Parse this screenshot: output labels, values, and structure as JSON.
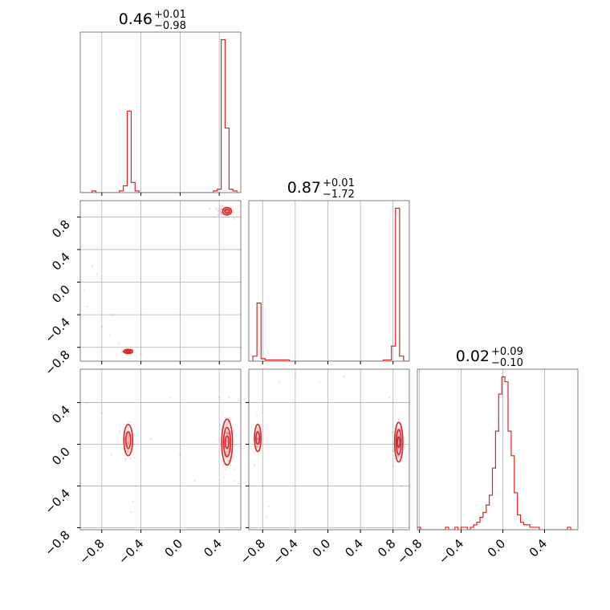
{
  "chart_data": {
    "type": "corner",
    "color": "#d62728",
    "grid": true,
    "n_params": 3,
    "panels": [
      {
        "type": "histogram",
        "row": 0,
        "col": 0,
        "title": {
          "median": "0.46",
          "plus": "+0.01",
          "minus": "−0.98"
        },
        "xlim": [
          -1.02,
          0.62
        ],
        "bin_edges": [
          -1.02,
          -0.98,
          -0.94,
          -0.9,
          -0.86,
          -0.82,
          -0.78,
          -0.74,
          -0.7,
          -0.66,
          -0.62,
          -0.58,
          -0.54,
          -0.5,
          -0.46,
          -0.42,
          -0.38,
          -0.34,
          -0.3,
          -0.26,
          -0.22,
          -0.18,
          -0.14,
          -0.1,
          -0.06,
          -0.02,
          0.02,
          0.06,
          0.1,
          0.14,
          0.18,
          0.22,
          0.26,
          0.3,
          0.34,
          0.38,
          0.42,
          0.46,
          0.5,
          0.54,
          0.58,
          0.62
        ],
        "counts": [
          0,
          0,
          0,
          1,
          0,
          0,
          0,
          0,
          0,
          0,
          1,
          4,
          48,
          6,
          1,
          0,
          0,
          0,
          0,
          0,
          0,
          0,
          0,
          0,
          0,
          0,
          0,
          0,
          0,
          0,
          0,
          0,
          0,
          0,
          1,
          2,
          90,
          38,
          2,
          1,
          0
        ]
      },
      {
        "type": "scatter",
        "row": 1,
        "col": 0,
        "xlim": [
          -1.02,
          0.62
        ],
        "ylim": [
          -0.97,
          1.0
        ],
        "clusters": [
          {
            "cx": -0.53,
            "cy": -0.85,
            "sx": 0.03,
            "sy": 0.015,
            "n": 55
          },
          {
            "cx": 0.46,
            "cy": 0.87,
            "sx": 0.04,
            "sy": 0.03,
            "n": 90
          }
        ],
        "outliers": [
          [
            -0.95,
            -0.3
          ],
          [
            -0.9,
            0.2
          ],
          [
            -0.8,
            -0.55
          ],
          [
            -0.72,
            -0.65
          ],
          [
            -0.63,
            -0.75
          ],
          [
            -0.85,
            0.1
          ],
          [
            -0.7,
            -0.4
          ],
          [
            0.3,
            0.9
          ],
          [
            -0.4,
            -0.88
          ],
          [
            0.35,
            0.8
          ],
          [
            0.55,
            0.78
          ],
          [
            -0.98,
            -0.1
          ]
        ],
        "contours": [
          {
            "cx": -0.53,
            "cy": -0.85,
            "rx": 0.045,
            "ry": 0.025
          },
          {
            "cx": -0.53,
            "cy": -0.85,
            "rx": 0.025,
            "ry": 0.012
          },
          {
            "cx": 0.48,
            "cy": 0.87,
            "rx": 0.045,
            "ry": 0.045
          },
          {
            "cx": 0.48,
            "cy": 0.87,
            "rx": 0.025,
            "ry": 0.022
          }
        ]
      },
      {
        "type": "histogram",
        "row": 1,
        "col": 1,
        "title": {
          "median": "0.87",
          "plus": "+0.01",
          "minus": "−1.72"
        },
        "xlim": [
          -0.97,
          1.0
        ],
        "bin_edges": [
          -0.97,
          -0.92,
          -0.87,
          -0.82,
          -0.77,
          -0.72,
          -0.67,
          -0.62,
          -0.57,
          -0.52,
          -0.47,
          -0.42,
          -0.37,
          -0.32,
          -0.27,
          -0.22,
          -0.17,
          -0.12,
          -0.07,
          -0.02,
          0.03,
          0.08,
          0.13,
          0.18,
          0.23,
          0.28,
          0.33,
          0.38,
          0.43,
          0.48,
          0.53,
          0.58,
          0.63,
          0.68,
          0.73,
          0.78,
          0.83,
          0.88,
          0.93,
          0.98,
          1.0
        ],
        "counts": [
          0,
          4,
          46,
          2,
          1,
          1,
          1,
          1,
          1,
          1,
          0,
          0,
          0,
          0,
          0,
          0,
          0,
          0,
          0,
          0,
          0,
          0,
          0,
          0,
          0,
          0,
          0,
          0,
          0,
          0,
          0,
          0,
          0,
          1,
          1,
          12,
          121,
          4,
          0,
          0
        ]
      },
      {
        "type": "scatter",
        "row": 2,
        "col": 0,
        "xlim": [
          -1.02,
          0.62
        ],
        "ylim": [
          -0.82,
          0.72
        ],
        "clusters": [
          {
            "cx": -0.53,
            "cy": 0.03,
            "sx": 0.025,
            "sy": 0.08,
            "n": 70
          },
          {
            "cx": 0.48,
            "cy": 0.02,
            "sx": 0.03,
            "sy": 0.1,
            "n": 110
          }
        ],
        "outliers": [
          [
            -0.95,
            0.4
          ],
          [
            -0.8,
            0.3
          ],
          [
            -0.7,
            -0.1
          ],
          [
            -0.48,
            -0.55
          ],
          [
            -0.5,
            -0.65
          ],
          [
            -0.45,
            -0.4
          ],
          [
            0.4,
            0.45
          ],
          [
            0.55,
            -0.35
          ],
          [
            -0.1,
            0.45
          ],
          [
            0.15,
            -0.35
          ],
          [
            -0.3,
            0.05
          ],
          [
            0.0,
            -0.1
          ],
          [
            0.5,
            0.45
          ]
        ],
        "contours": [
          {
            "cx": -0.53,
            "cy": 0.04,
            "rx": 0.045,
            "ry": 0.15
          },
          {
            "cx": -0.53,
            "cy": 0.04,
            "rx": 0.025,
            "ry": 0.08
          },
          {
            "cx": 0.48,
            "cy": 0.02,
            "rx": 0.055,
            "ry": 0.22
          },
          {
            "cx": 0.48,
            "cy": 0.02,
            "rx": 0.035,
            "ry": 0.14
          },
          {
            "cx": 0.48,
            "cy": 0.02,
            "rx": 0.018,
            "ry": 0.06
          }
        ]
      },
      {
        "type": "scatter",
        "row": 2,
        "col": 1,
        "xlim": [
          -0.97,
          1.0
        ],
        "ylim": [
          -0.82,
          0.72
        ],
        "clusters": [
          {
            "cx": -0.86,
            "cy": 0.05,
            "sx": 0.02,
            "sy": 0.07,
            "n": 60
          },
          {
            "cx": 0.86,
            "cy": 0.02,
            "sx": 0.025,
            "sy": 0.09,
            "n": 110
          }
        ],
        "outliers": [
          [
            -0.8,
            -0.4
          ],
          [
            -0.72,
            -0.6
          ],
          [
            -0.75,
            -0.7
          ],
          [
            -0.6,
            0.6
          ],
          [
            -0.4,
            0.65
          ],
          [
            0.75,
            0.45
          ],
          [
            0.8,
            0.4
          ],
          [
            0.9,
            -0.4
          ],
          [
            -0.9,
            -0.2
          ],
          [
            0.2,
            0.65
          ],
          [
            -0.1,
            0.6
          ]
        ],
        "contours": [
          {
            "cx": -0.86,
            "cy": 0.06,
            "rx": 0.04,
            "ry": 0.13
          },
          {
            "cx": -0.86,
            "cy": 0.06,
            "rx": 0.022,
            "ry": 0.06
          },
          {
            "cx": 0.87,
            "cy": 0.02,
            "rx": 0.05,
            "ry": 0.19
          },
          {
            "cx": 0.87,
            "cy": 0.02,
            "rx": 0.03,
            "ry": 0.12
          },
          {
            "cx": 0.87,
            "cy": 0.02,
            "rx": 0.015,
            "ry": 0.05
          }
        ]
      },
      {
        "type": "histogram",
        "row": 2,
        "col": 2,
        "title": {
          "median": "0.02",
          "plus": "+0.09",
          "minus": "−0.10"
        },
        "xlim": [
          -0.82,
          0.72
        ],
        "bin_edges": [
          -0.82,
          -0.79,
          -0.76,
          -0.73,
          -0.7,
          -0.67,
          -0.64,
          -0.61,
          -0.58,
          -0.55,
          -0.52,
          -0.49,
          -0.46,
          -0.43,
          -0.4,
          -0.37,
          -0.34,
          -0.31,
          -0.28,
          -0.25,
          -0.22,
          -0.19,
          -0.16,
          -0.13,
          -0.1,
          -0.07,
          -0.04,
          -0.01,
          0.02,
          0.05,
          0.08,
          0.11,
          0.14,
          0.17,
          0.2,
          0.23,
          0.26,
          0.29,
          0.32,
          0.35,
          0.38,
          0.41,
          0.44,
          0.47,
          0.5,
          0.53,
          0.56,
          0.59,
          0.62,
          0.65,
          0.68,
          0.72
        ],
        "counts": [
          1,
          0,
          0,
          0,
          0,
          0,
          0,
          0,
          0,
          1,
          0,
          0,
          1,
          0,
          1,
          1,
          0,
          1,
          2,
          3,
          5,
          7,
          10,
          14,
          25,
          40,
          55,
          62,
          60,
          40,
          30,
          15,
          6,
          3,
          2,
          2,
          1,
          1,
          1,
          0,
          0,
          0,
          0,
          0,
          0,
          0,
          0,
          0,
          1,
          0,
          0
        ]
      }
    ],
    "axes": {
      "col_ticks": [
        {
          "values": [
            -0.8,
            -0.4,
            0.0,
            0.4
          ],
          "labels": [
            "−0.8",
            "−0.4",
            "0.0",
            "0.4"
          ]
        },
        {
          "values": [
            -0.8,
            -0.4,
            0.0,
            0.4,
            0.8
          ],
          "labels": [
            "−0.8",
            "−0.4",
            "0.0",
            "0.4",
            "0.8"
          ]
        },
        {
          "values": [
            -0.8,
            -0.4,
            0.0,
            0.4
          ],
          "labels": [
            "−0.8",
            "−0.4",
            "0.0",
            "0.4"
          ]
        }
      ],
      "row_ticks": [
        null,
        {
          "values": [
            -0.8,
            -0.4,
            0.0,
            0.4,
            0.8
          ],
          "labels": [
            "−0.8",
            "−0.4",
            "0.0",
            "0.4",
            "0.8"
          ]
        },
        {
          "values": [
            -0.8,
            -0.4,
            0.0,
            0.4
          ],
          "labels": [
            "−0.8",
            "−0.4",
            "0.0",
            "0.4"
          ]
        }
      ]
    }
  }
}
